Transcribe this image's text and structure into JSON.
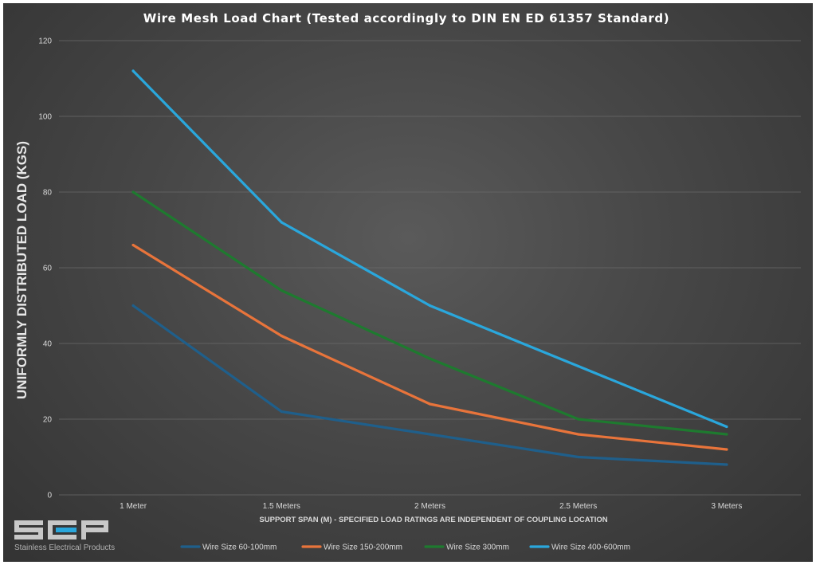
{
  "chart_data": {
    "type": "line",
    "title": "Wire Mesh Load Chart (Tested accordingly to DIN EN ED 61357 Standard)",
    "xlabel": "SUPPORT SPAN (M) - SPECIFIED LOAD RATINGS ARE INDEPENDENT OF COUPLING LOCATION",
    "ylabel": "UNIFORMLY DISTRIBUTED LOAD (KGS)",
    "categories": [
      "1 Meter",
      "1.5 Meters",
      "2 Meters",
      "2.5 Meters",
      "3 Meters"
    ],
    "ylim": [
      0,
      120
    ],
    "yticks": [
      0,
      20,
      40,
      60,
      80,
      100,
      120
    ],
    "grid": true,
    "legend": "bottom",
    "series": [
      {
        "name": "Wire Size 60-100mm",
        "color": "#1f5f8b",
        "values": [
          50,
          22,
          16,
          10,
          8
        ]
      },
      {
        "name": "Wire Size 150-200mm",
        "color": "#e8743b",
        "values": [
          66,
          42,
          24,
          16,
          12
        ]
      },
      {
        "name": "Wire Size 300mm",
        "color": "#1e7a2f",
        "values": [
          80,
          54,
          36,
          20,
          16
        ]
      },
      {
        "name": "Wire Size 400-600mm",
        "color": "#2aa7dc",
        "values": [
          112,
          72,
          50,
          34,
          18
        ]
      }
    ]
  },
  "logo": {
    "mark": "SEP",
    "caption": "Stainless Electrical Products",
    "color": "#c8c8c8",
    "accent": "#2aa7dc"
  }
}
